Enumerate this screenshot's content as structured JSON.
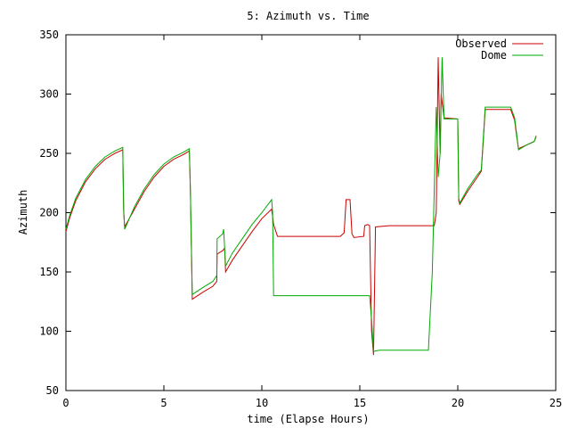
{
  "chart_data": {
    "type": "line",
    "title": "5: Azimuth vs. Time",
    "xlabel": "time (Elapse Hours)",
    "ylabel": "Azimuth",
    "xlim": [
      0,
      25
    ],
    "ylim": [
      50,
      350
    ],
    "xticks": [
      0,
      5,
      10,
      15,
      20,
      25
    ],
    "yticks": [
      50,
      100,
      150,
      200,
      250,
      300,
      350
    ],
    "grid": false,
    "legend_position": "top-right",
    "colors": {
      "observed": "#cc0000",
      "dome": "#00aa00",
      "axis": "#000000"
    },
    "series": [
      {
        "name": "Observed",
        "color": "#cc0000",
        "points": [
          [
            0,
            184
          ],
          [
            0.2,
            196
          ],
          [
            0.5,
            210
          ],
          [
            1.0,
            226
          ],
          [
            1.5,
            237
          ],
          [
            2.0,
            245
          ],
          [
            2.5,
            250
          ],
          [
            2.9,
            253
          ],
          [
            2.95,
            200
          ],
          [
            3.0,
            188
          ],
          [
            3.5,
            203
          ],
          [
            4.0,
            218
          ],
          [
            4.5,
            230
          ],
          [
            5.0,
            239
          ],
          [
            5.5,
            245
          ],
          [
            6.0,
            249
          ],
          [
            6.3,
            252
          ],
          [
            6.35,
            220
          ],
          [
            6.45,
            127
          ],
          [
            7.0,
            133
          ],
          [
            7.5,
            138
          ],
          [
            7.7,
            142
          ],
          [
            7.72,
            165
          ],
          [
            8.0,
            168
          ],
          [
            8.1,
            170
          ],
          [
            8.15,
            150
          ],
          [
            8.5,
            160
          ],
          [
            9.0,
            172
          ],
          [
            9.5,
            184
          ],
          [
            10.0,
            195
          ],
          [
            10.5,
            203
          ],
          [
            10.6,
            190
          ],
          [
            10.8,
            180
          ],
          [
            12.0,
            180
          ],
          [
            14.0,
            180
          ],
          [
            14.2,
            183
          ],
          [
            14.3,
            211
          ],
          [
            14.5,
            211
          ],
          [
            14.6,
            182
          ],
          [
            14.7,
            179
          ],
          [
            15.2,
            180
          ],
          [
            15.25,
            189
          ],
          [
            15.4,
            190
          ],
          [
            15.5,
            189
          ],
          [
            15.6,
            100
          ],
          [
            15.7,
            80
          ],
          [
            15.8,
            188
          ],
          [
            16.5,
            189
          ],
          [
            18.0,
            189
          ],
          [
            18.8,
            189
          ],
          [
            18.9,
            200
          ],
          [
            19.0,
            331
          ],
          [
            19.1,
            250
          ],
          [
            19.15,
            300
          ],
          [
            19.3,
            280
          ],
          [
            20.0,
            279
          ],
          [
            20.05,
            210
          ],
          [
            20.1,
            207
          ],
          [
            20.5,
            218
          ],
          [
            21.0,
            230
          ],
          [
            21.2,
            235
          ],
          [
            21.3,
            260
          ],
          [
            21.4,
            287
          ],
          [
            22.0,
            287
          ],
          [
            22.7,
            287
          ],
          [
            22.9,
            278
          ],
          [
            23.0,
            265
          ],
          [
            23.1,
            254
          ],
          [
            23.5,
            257
          ],
          [
            23.9,
            260
          ],
          [
            24.0,
            264
          ]
        ]
      },
      {
        "name": "Dome",
        "color": "#00aa00",
        "points": [
          [
            0,
            186
          ],
          [
            0.2,
            198
          ],
          [
            0.5,
            212
          ],
          [
            1.0,
            228
          ],
          [
            1.5,
            239
          ],
          [
            2.0,
            247
          ],
          [
            2.5,
            252
          ],
          [
            2.9,
            255
          ],
          [
            2.95,
            202
          ],
          [
            3.0,
            186
          ],
          [
            3.5,
            205
          ],
          [
            4.0,
            220
          ],
          [
            4.5,
            232
          ],
          [
            5.0,
            241
          ],
          [
            5.5,
            247
          ],
          [
            6.0,
            251
          ],
          [
            6.3,
            254
          ],
          [
            6.35,
            222
          ],
          [
            6.45,
            131
          ],
          [
            7.0,
            137
          ],
          [
            7.5,
            142
          ],
          [
            7.7,
            147
          ],
          [
            7.72,
            178
          ],
          [
            8.0,
            182
          ],
          [
            8.05,
            186
          ],
          [
            8.15,
            155
          ],
          [
            8.5,
            166
          ],
          [
            9.0,
            178
          ],
          [
            9.5,
            190
          ],
          [
            10.0,
            200
          ],
          [
            10.5,
            211
          ],
          [
            10.55,
            200
          ],
          [
            10.6,
            130
          ],
          [
            12.0,
            130
          ],
          [
            15.0,
            130
          ],
          [
            15.5,
            130
          ],
          [
            15.6,
            110
          ],
          [
            15.7,
            83
          ],
          [
            16.0,
            84
          ],
          [
            17.0,
            84
          ],
          [
            18.5,
            84
          ],
          [
            18.7,
            150
          ],
          [
            18.9,
            289
          ],
          [
            19.0,
            230
          ],
          [
            19.1,
            250
          ],
          [
            19.2,
            331
          ],
          [
            19.3,
            279
          ],
          [
            20.0,
            279
          ],
          [
            20.05,
            212
          ],
          [
            20.1,
            208
          ],
          [
            20.5,
            220
          ],
          [
            21.0,
            232
          ],
          [
            21.2,
            236
          ],
          [
            21.3,
            262
          ],
          [
            21.4,
            289
          ],
          [
            22.0,
            289
          ],
          [
            22.7,
            289
          ],
          [
            22.9,
            280
          ],
          [
            23.0,
            267
          ],
          [
            23.1,
            253
          ],
          [
            23.5,
            257
          ],
          [
            23.9,
            260
          ],
          [
            24.0,
            265
          ]
        ]
      }
    ]
  }
}
